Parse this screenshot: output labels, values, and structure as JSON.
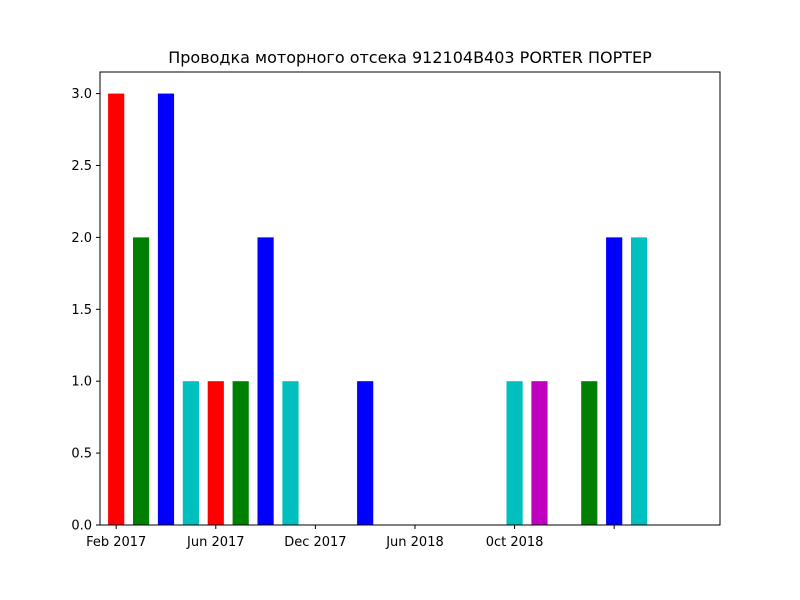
{
  "chart_data": {
    "type": "bar",
    "title": "Проводка моторного отсека 912104B403 PORTER ПОРТЕР",
    "xlabel": "",
    "ylabel": "",
    "ylim": [
      0,
      3.15
    ],
    "yticks": [
      0.0,
      0.5,
      1.0,
      1.5,
      2.0,
      2.5,
      3.0
    ],
    "ytick_labels": [
      "0.0",
      "0.5",
      "1.0",
      "1.5",
      "2.0",
      "2.5",
      "3.0"
    ],
    "xlim_month": [
      0.35,
      25.25
    ],
    "xticks_month": [
      1,
      5,
      9,
      13,
      17,
      21
    ],
    "xtick_labels": [
      "Feb 2017",
      "Jun 2017",
      "Dec 2017",
      "Jun 2018",
      "0ct 2018",
      ""
    ],
    "bar_width_month": 0.65,
    "grid": false,
    "bars": [
      {
        "month": 1,
        "value": 3,
        "color": "#ff0000"
      },
      {
        "month": 2,
        "value": 2,
        "color": "#008000"
      },
      {
        "month": 3,
        "value": 3,
        "color": "#0000ff"
      },
      {
        "month": 4,
        "value": 1,
        "color": "#00bfbf"
      },
      {
        "month": 5,
        "value": 1,
        "color": "#ff0000"
      },
      {
        "month": 6,
        "value": 1,
        "color": "#008000"
      },
      {
        "month": 7,
        "value": 2,
        "color": "#0000ff"
      },
      {
        "month": 8,
        "value": 1,
        "color": "#00bfbf"
      },
      {
        "month": 11,
        "value": 1,
        "color": "#0000ff"
      },
      {
        "month": 17,
        "value": 1,
        "color": "#00bfbf"
      },
      {
        "month": 18,
        "value": 1,
        "color": "#bf00bf"
      },
      {
        "month": 20,
        "value": 1,
        "color": "#008000"
      },
      {
        "month": 21,
        "value": 2,
        "color": "#0000ff"
      },
      {
        "month": 22,
        "value": 2,
        "color": "#00bfbf"
      }
    ]
  }
}
